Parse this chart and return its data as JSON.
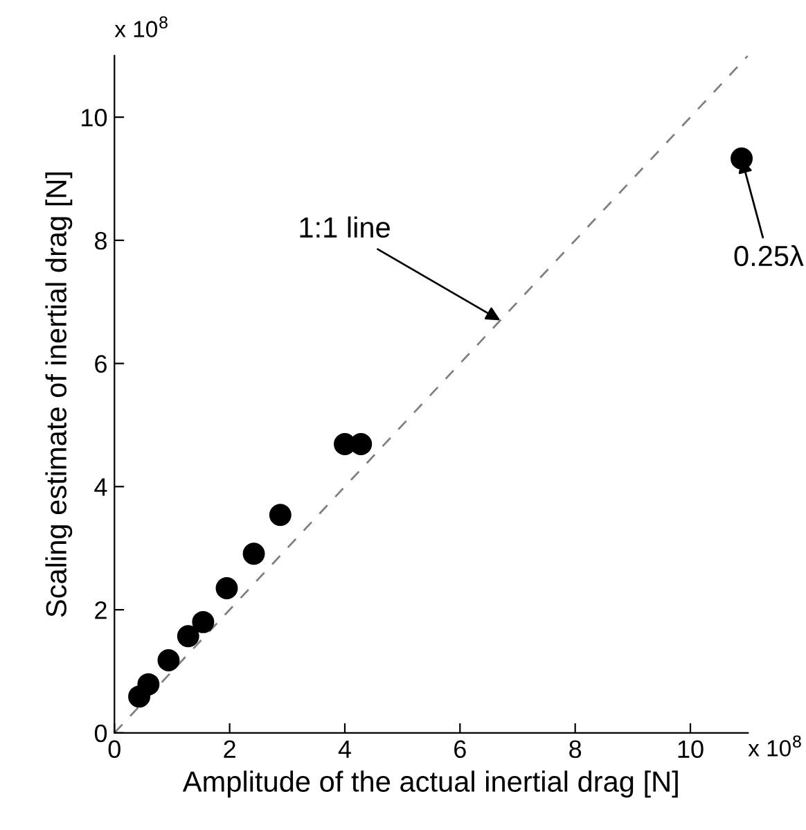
{
  "chart_data": {
    "type": "scatter",
    "xlabel": "Amplitude of the actual inertial drag [N]",
    "ylabel": "Scaling estimate of inertial drag [N]",
    "xlim": [
      0,
      11
    ],
    "ylim": [
      0,
      11
    ],
    "xticks": [
      0,
      2,
      4,
      6,
      8,
      10
    ],
    "yticks": [
      0,
      2,
      4,
      6,
      8,
      10
    ],
    "grid": false,
    "legend": false,
    "series": [
      {
        "type": "line",
        "color": "#808080",
        "line_style": "dashed",
        "marker": "none",
        "x": [
          0,
          11
        ],
        "values": [
          0,
          11
        ]
      },
      {
        "color": "#000000",
        "marker": "circle",
        "x": [
          0.43,
          0.59,
          0.94,
          1.28,
          1.54,
          1.95,
          2.42,
          2.88,
          4.0,
          4.28,
          10.89
        ],
        "values": [
          0.59,
          0.79,
          1.18,
          1.57,
          1.8,
          2.35,
          2.91,
          3.54,
          4.69,
          4.69,
          9.33
        ]
      }
    ],
    "annotations": [
      {
        "text": "1:1 line",
        "x": 6.7,
        "y": 6.7
      },
      {
        "text": "0.25λ",
        "x": 10.89,
        "y": 9.33
      },
      "x 10$^{8}$",
      "x 10$^{8}$"
    ]
  }
}
